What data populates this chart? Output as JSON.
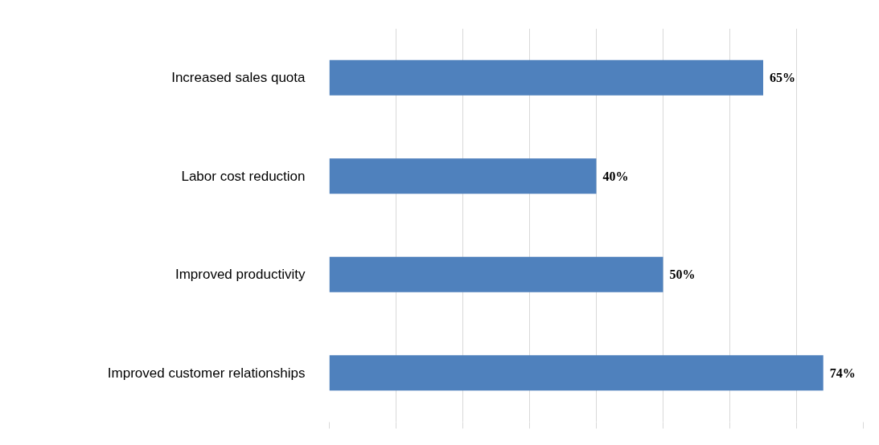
{
  "chart_data": {
    "type": "bar",
    "orientation": "horizontal",
    "categories": [
      "Increased sales quota",
      "Labor cost reduction",
      "Improved productivity",
      "Improved customer relationships"
    ],
    "values": [
      65,
      40,
      50,
      74
    ],
    "color": "#4f81bd",
    "value_labels": [
      "65%",
      "40%",
      "50%",
      "74%"
    ],
    "xticks": [
      {
        "value": 0,
        "label": null
      },
      {
        "value": 10,
        "label": null
      },
      {
        "value": 20,
        "label": null
      },
      {
        "value": 30,
        "label": null
      },
      {
        "value": 40,
        "label": null
      },
      {
        "value": 50,
        "label": null
      },
      {
        "value": 60,
        "label": null
      },
      {
        "value": 70,
        "label": null
      },
      {
        "value": 80,
        "label": null
      }
    ],
    "grid": "x",
    "tick_labels": "y"
  }
}
